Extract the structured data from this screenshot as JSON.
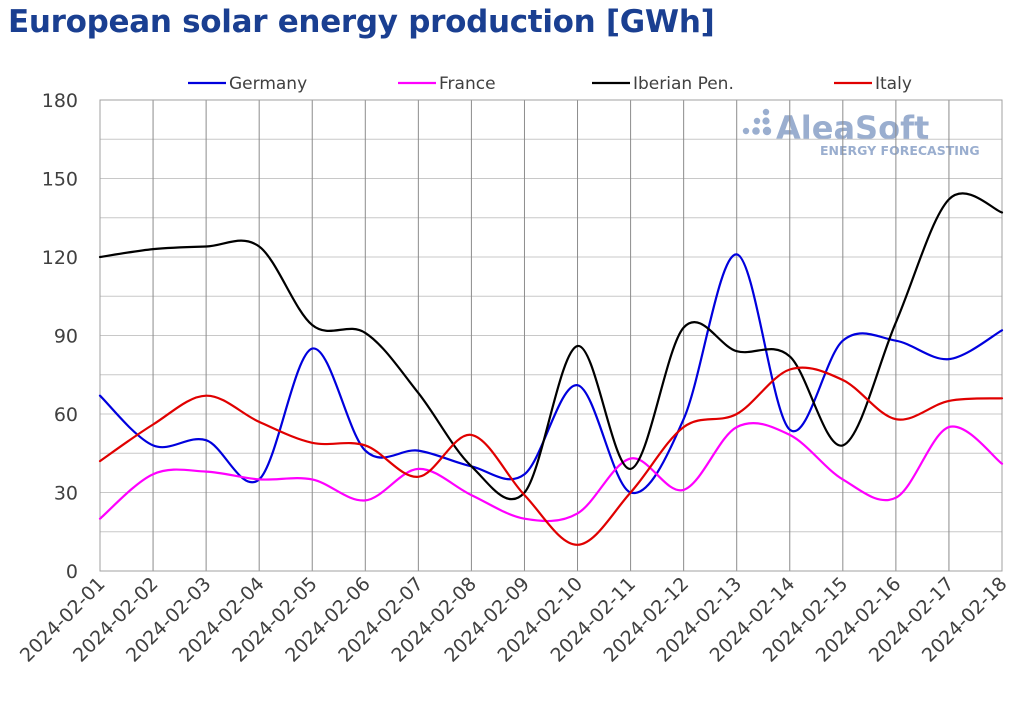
{
  "title": "European solar energy production [GWh]",
  "logo": {
    "name": "AleaSoft",
    "tagline": "ENERGY FORECASTING"
  },
  "chart_data": {
    "type": "line",
    "title": "European solar energy production [GWh]",
    "xlabel": "",
    "ylabel": "",
    "ylim": [
      0,
      180
    ],
    "yticks": [
      "0",
      "30",
      "60",
      "90",
      "120",
      "150",
      "180"
    ],
    "grid": true,
    "legend_placement": "top",
    "categories": [
      "2024-02-01",
      "2024-02-02",
      "2024-02-03",
      "2024-02-04",
      "2024-02-05",
      "2024-02-06",
      "2024-02-07",
      "2024-02-08",
      "2024-02-09",
      "2024-02-10",
      "2024-02-11",
      "2024-02-12",
      "2024-02-13",
      "2024-02-14",
      "2024-02-15",
      "2024-02-16",
      "2024-02-17",
      "2024-02-18"
    ],
    "series": [
      {
        "name": "Germany",
        "color": "#0000dd",
        "values": [
          67,
          48,
          50,
          35,
          85,
          46,
          46,
          40,
          37,
          71,
          30,
          58,
          121,
          54,
          88,
          88,
          81,
          92
        ]
      },
      {
        "name": "France",
        "color": "#ff00ff",
        "values": [
          20,
          37,
          38,
          35,
          35,
          27,
          39,
          29,
          20,
          22,
          43,
          31,
          55,
          52,
          35,
          28,
          55,
          41
        ]
      },
      {
        "name": "Iberian Pen.",
        "color": "#000000",
        "values": [
          120,
          123,
          124,
          124,
          94,
          91,
          68,
          40,
          30,
          86,
          39,
          93,
          84,
          82,
          48,
          95,
          142,
          137
        ]
      },
      {
        "name": "Italy",
        "color": "#e00000",
        "values": [
          42,
          56,
          67,
          57,
          49,
          48,
          36,
          52,
          29,
          10,
          30,
          55,
          60,
          77,
          73,
          58,
          65,
          66
        ]
      }
    ]
  }
}
